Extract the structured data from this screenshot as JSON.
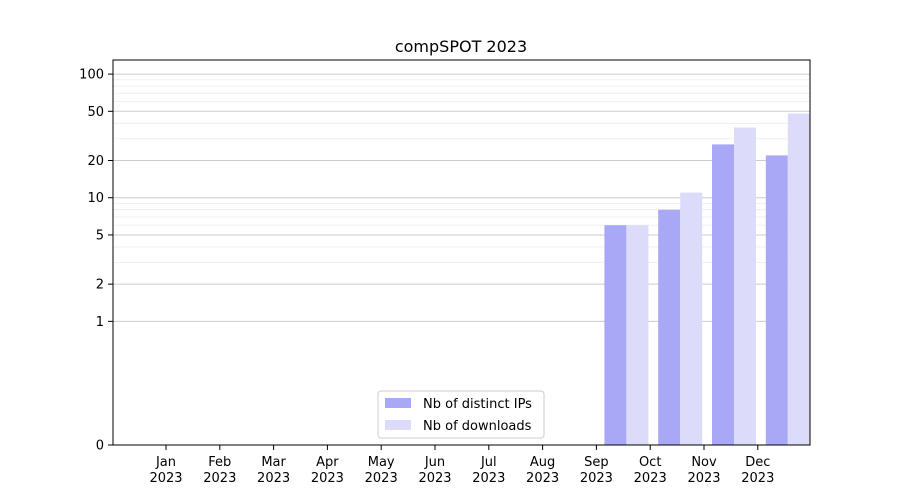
{
  "chart_data": {
    "type": "bar",
    "title": "compSPOT 2023",
    "xlabel": "",
    "ylabel": "",
    "categories": [
      {
        "month": "Jan",
        "year": "2023"
      },
      {
        "month": "Feb",
        "year": "2023"
      },
      {
        "month": "Mar",
        "year": "2023"
      },
      {
        "month": "Apr",
        "year": "2023"
      },
      {
        "month": "May",
        "year": "2023"
      },
      {
        "month": "Jun",
        "year": "2023"
      },
      {
        "month": "Jul",
        "year": "2023"
      },
      {
        "month": "Aug",
        "year": "2023"
      },
      {
        "month": "Sep",
        "year": "2023"
      },
      {
        "month": "Oct",
        "year": "2023"
      },
      {
        "month": "Nov",
        "year": "2023"
      },
      {
        "month": "Dec",
        "year": "2023"
      }
    ],
    "series": [
      {
        "name": "Nb of distinct IPs",
        "color": "#a8a8f7",
        "values": [
          0,
          0,
          0,
          0,
          0,
          0,
          0,
          0,
          6,
          8,
          27,
          22
        ]
      },
      {
        "name": "Nb of downloads",
        "color": "#dcdcfa",
        "values": [
          0,
          0,
          0,
          0,
          0,
          0,
          0,
          0,
          6,
          11,
          37,
          48
        ]
      }
    ],
    "yscale": "symlog",
    "ylim": [
      0,
      130
    ],
    "yticks": [
      0,
      1,
      2,
      5,
      10,
      20,
      50,
      100
    ],
    "ytick_labels": [
      "0",
      "1",
      "2",
      "5",
      "10",
      "20",
      "50",
      "100"
    ],
    "grid": "horizontal",
    "legend_position": "bottom-center"
  }
}
